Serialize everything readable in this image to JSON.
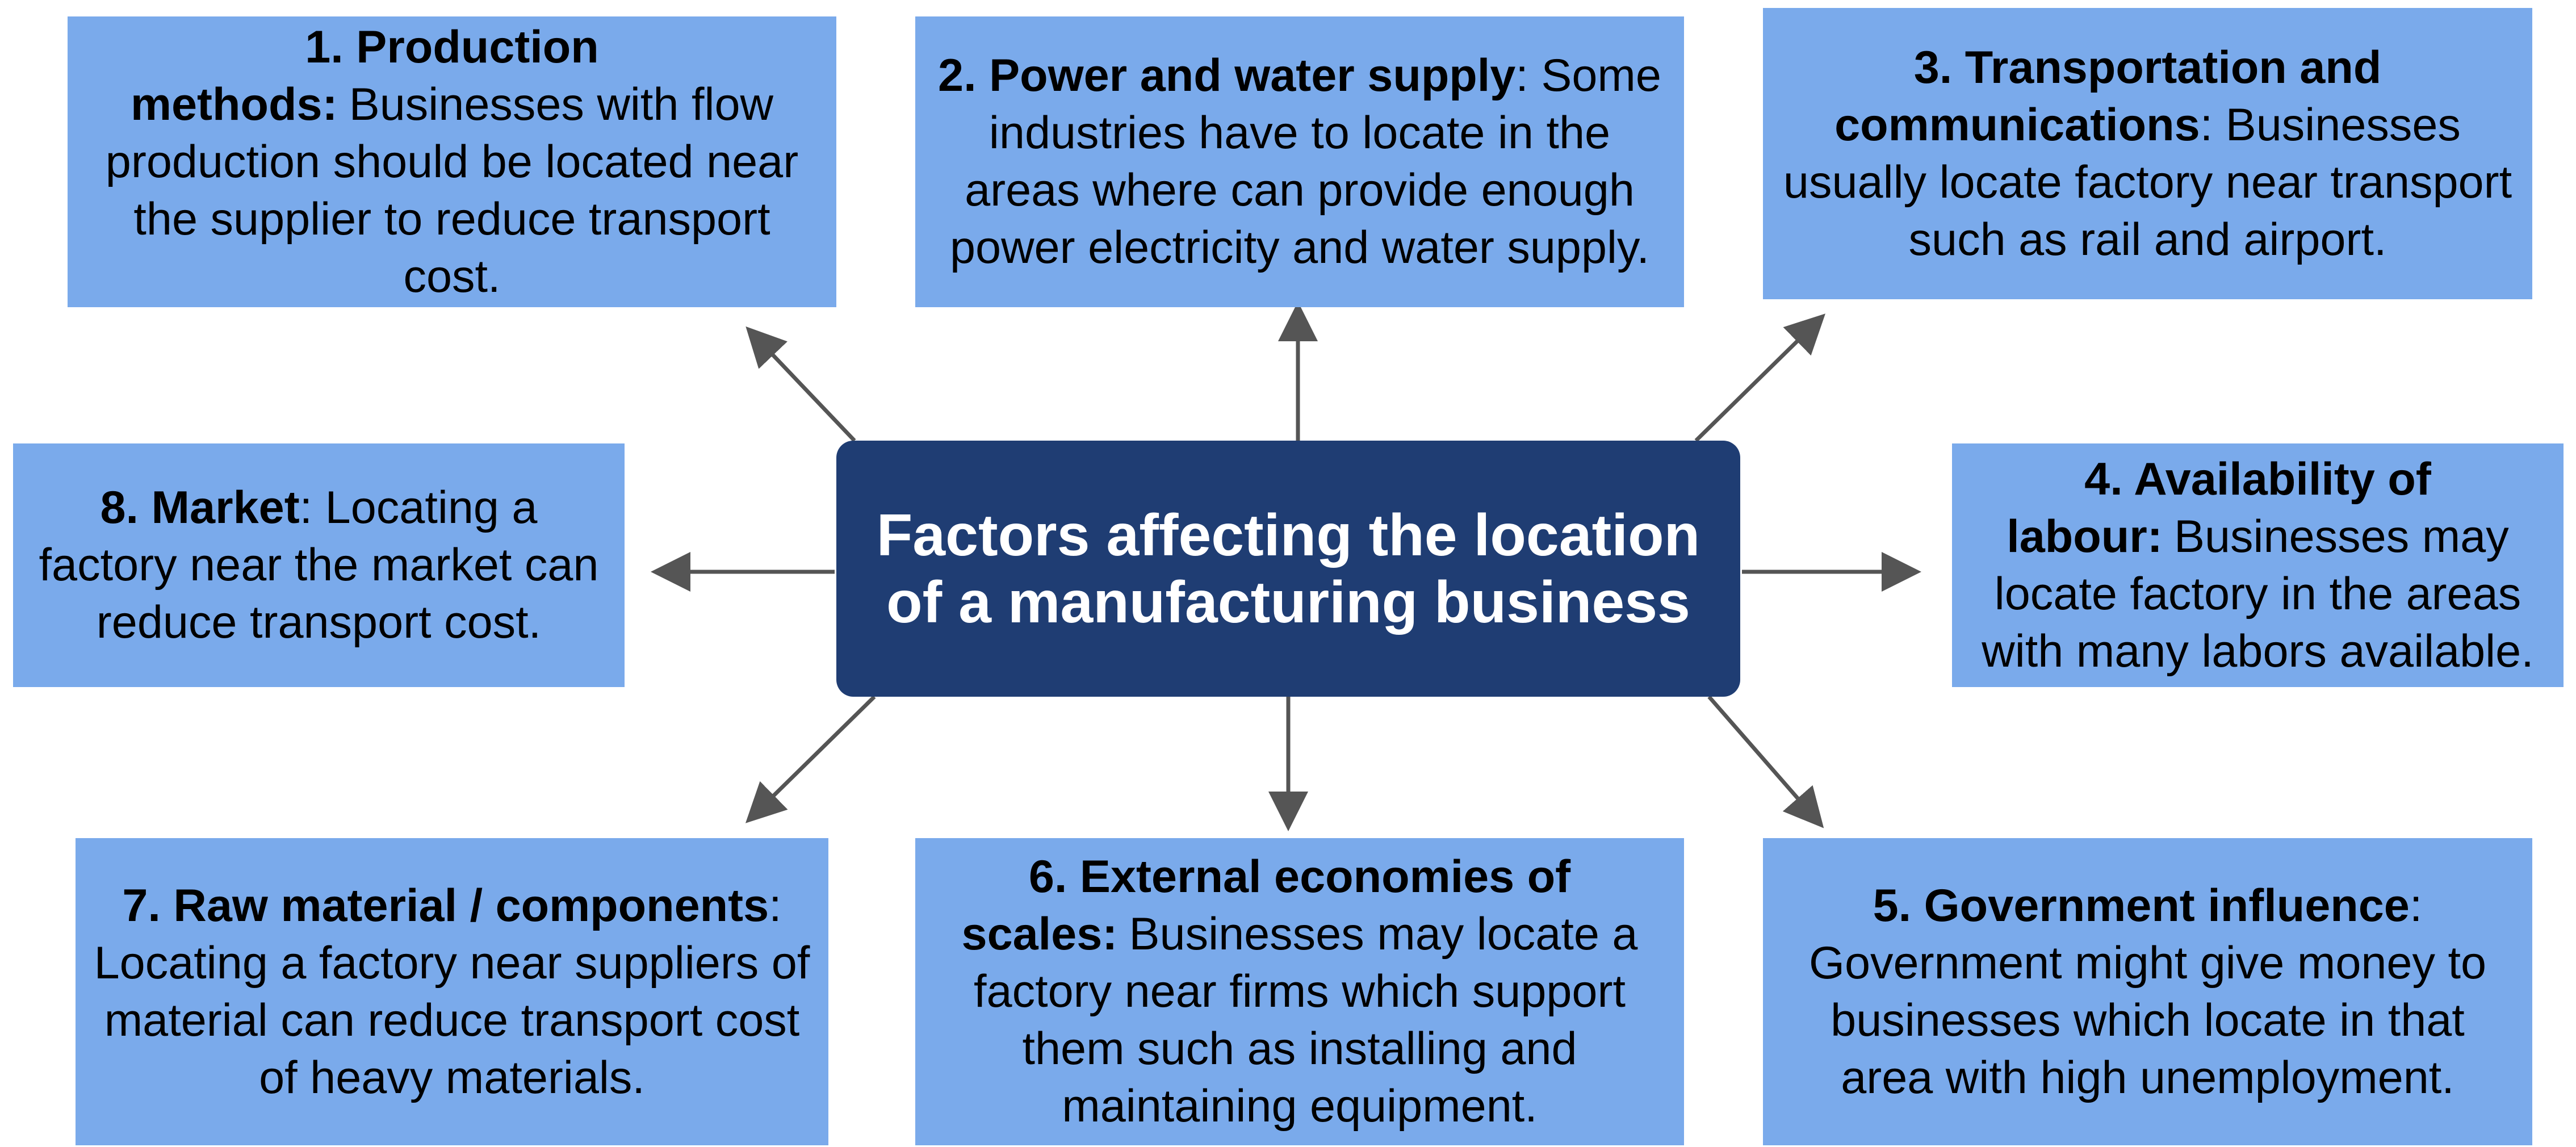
{
  "title": "Factors affecting the location of a manufacturing business",
  "nodes": [
    {
      "heading": "1. Production methods:",
      "text": "Businesses with flow production should be located near the supplier to reduce transport cost."
    },
    {
      "heading": "2. Power and water supply",
      "text": ": Some industries have to locate in the areas where can provide enough power electricity and water supply."
    },
    {
      "heading": "3. Transportation and communications",
      "text": ": Businesses usually locate factory near transport such as rail and airport."
    },
    {
      "heading": "4. Availability of labour:",
      "text": "Businesses may locate factory in the areas with many labors available."
    },
    {
      "heading": "5. Government influence",
      "text": ": Government might give money to businesses which locate in that area with high unemployment."
    },
    {
      "heading": "6. External economies of scales:",
      "text": "Businesses may locate a factory near firms which support them such as installing and maintaining equipment."
    },
    {
      "heading": "7. Raw material / components",
      "text": ": Locating a factory near suppliers of material can reduce transport cost of heavy materials."
    },
    {
      "heading": "8. Market",
      "text": ": Locating a factory near the market can reduce transport cost."
    }
  ]
}
